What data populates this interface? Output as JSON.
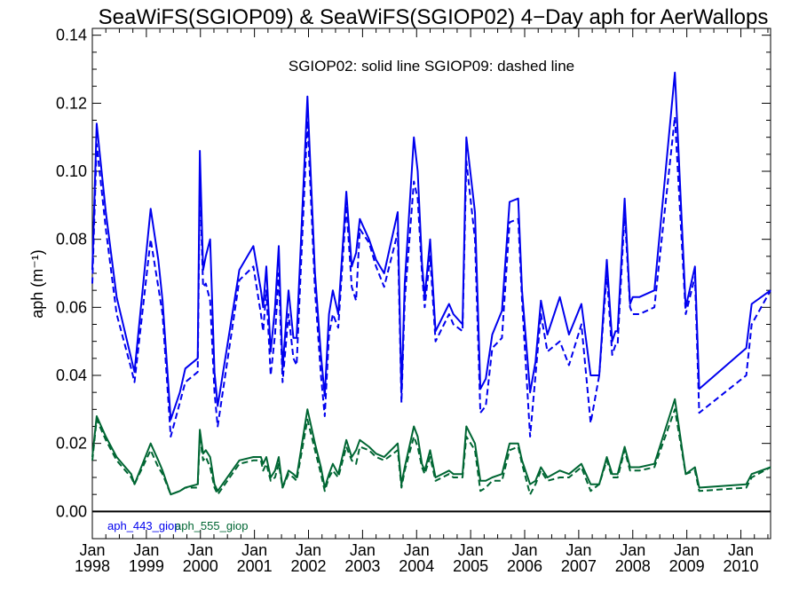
{
  "chart_data": {
    "type": "line",
    "title": "SeaWiFS(SGIOP09) & SeaWiFS(SGIOP02) 4−Day aph for AerWallops",
    "annotation": "SGIOP02: solid line   SGIOP09: dashed line",
    "ylabel": "aph (m⁻¹)",
    "xlabel": "",
    "ylim": [
      -0.008,
      0.142
    ],
    "xlim": [
      1998.0,
      2010.55
    ],
    "yticks": [
      "0.00",
      "0.02",
      "0.04",
      "0.06",
      "0.08",
      "0.10",
      "0.12",
      "0.14"
    ],
    "xticks": [
      {
        "top": "Jan",
        "bottom": "1998"
      },
      {
        "top": "Jan",
        "bottom": "1999"
      },
      {
        "top": "Jan",
        "bottom": "2000"
      },
      {
        "top": "Jan",
        "bottom": "2001"
      },
      {
        "top": "Jan",
        "bottom": "2002"
      },
      {
        "top": "Jan",
        "bottom": "2003"
      },
      {
        "top": "Jan",
        "bottom": "2004"
      },
      {
        "top": "Jan",
        "bottom": "2005"
      },
      {
        "top": "Jan",
        "bottom": "2006"
      },
      {
        "top": "Jan",
        "bottom": "2007"
      },
      {
        "top": "Jan",
        "bottom": "2008"
      },
      {
        "top": "Jan",
        "bottom": "2009"
      },
      {
        "top": "Jan",
        "bottom": "2010"
      }
    ],
    "series": [
      {
        "name": "aph_443_giop",
        "color": "#0000ee",
        "dash": false,
        "x": [
          1998.0,
          1998.08,
          1998.25,
          1998.45,
          1998.72,
          1998.78,
          1999.08,
          1999.22,
          1999.3,
          1999.45,
          1999.62,
          1999.72,
          1999.95,
          1999.99,
          2000.05,
          2000.1,
          2000.18,
          2000.26,
          2000.32,
          2000.72,
          2000.98,
          2001.12,
          2001.16,
          2001.22,
          2001.3,
          2001.38,
          2001.45,
          2001.52,
          2001.63,
          2001.72,
          2001.78,
          2001.98,
          2002.12,
          2002.23,
          2002.3,
          2002.38,
          2002.45,
          2002.55,
          2002.7,
          2002.8,
          2002.88,
          2002.95,
          2003.12,
          2003.25,
          2003.4,
          2003.65,
          2003.72,
          2003.78,
          2003.95,
          2004.02,
          2004.1,
          2004.15,
          2004.25,
          2004.35,
          2004.6,
          2004.68,
          2004.85,
          2004.92,
          2005.08,
          2005.18,
          2005.28,
          2005.4,
          2005.58,
          2005.72,
          2005.88,
          2005.95,
          2006.1,
          2006.2,
          2006.3,
          2006.42,
          2006.65,
          2006.82,
          2007.05,
          2007.22,
          2007.38,
          2007.52,
          2007.62,
          2007.68,
          2007.72,
          2007.85,
          2007.95,
          2008.0,
          2008.12,
          2008.4,
          2008.78,
          2008.98,
          2009.15,
          2009.23,
          2010.1,
          2010.2,
          2010.55
        ],
        "values": [
          0.071,
          0.114,
          0.088,
          0.063,
          0.045,
          0.041,
          0.089,
          0.074,
          0.062,
          0.027,
          0.035,
          0.042,
          0.045,
          0.106,
          0.071,
          0.075,
          0.08,
          0.041,
          0.031,
          0.071,
          0.078,
          0.065,
          0.06,
          0.072,
          0.047,
          0.06,
          0.078,
          0.042,
          0.065,
          0.051,
          0.051,
          0.122,
          0.07,
          0.046,
          0.034,
          0.058,
          0.065,
          0.058,
          0.094,
          0.072,
          0.076,
          0.086,
          0.08,
          0.074,
          0.07,
          0.088,
          0.035,
          0.067,
          0.11,
          0.1,
          0.073,
          0.063,
          0.08,
          0.053,
          0.061,
          0.058,
          0.055,
          0.11,
          0.088,
          0.036,
          0.039,
          0.052,
          0.059,
          0.091,
          0.092,
          0.065,
          0.035,
          0.044,
          0.062,
          0.052,
          0.063,
          0.052,
          0.061,
          0.04,
          0.04,
          0.074,
          0.05,
          0.053,
          0.053,
          0.092,
          0.061,
          0.063,
          0.063,
          0.065,
          0.129,
          0.06,
          0.072,
          0.036,
          0.048,
          0.061,
          0.065
        ]
      },
      {
        "name": "aph_443_giop SGIOP09",
        "color": "#0000ee",
        "dash": true,
        "x": [
          1998.0,
          1998.08,
          1998.25,
          1998.45,
          1998.72,
          1998.78,
          1999.08,
          1999.22,
          1999.3,
          1999.45,
          1999.62,
          1999.72,
          1999.95,
          1999.99,
          2000.05,
          2000.1,
          2000.18,
          2000.26,
          2000.32,
          2000.72,
          2000.98,
          2001.12,
          2001.16,
          2001.22,
          2001.3,
          2001.38,
          2001.45,
          2001.52,
          2001.63,
          2001.72,
          2001.78,
          2001.98,
          2002.12,
          2002.23,
          2002.3,
          2002.38,
          2002.45,
          2002.55,
          2002.7,
          2002.8,
          2002.88,
          2002.95,
          2003.12,
          2003.25,
          2003.4,
          2003.65,
          2003.72,
          2003.78,
          2003.95,
          2004.02,
          2004.1,
          2004.15,
          2004.25,
          2004.35,
          2004.6,
          2004.68,
          2004.85,
          2004.92,
          2005.08,
          2005.18,
          2005.28,
          2005.4,
          2005.58,
          2005.72,
          2005.88,
          2005.95,
          2006.1,
          2006.2,
          2006.3,
          2006.42,
          2006.65,
          2006.82,
          2007.05,
          2007.22,
          2007.38,
          2007.52,
          2007.62,
          2007.68,
          2007.72,
          2007.85,
          2007.95,
          2008.0,
          2008.12,
          2008.4,
          2008.78,
          2008.98,
          2009.15,
          2009.23,
          2010.1,
          2010.2,
          2010.55
        ],
        "values": [
          0.067,
          0.108,
          0.083,
          0.058,
          0.042,
          0.038,
          0.08,
          0.066,
          0.058,
          0.022,
          0.032,
          0.038,
          0.041,
          0.097,
          0.066,
          0.067,
          0.062,
          0.035,
          0.025,
          0.068,
          0.072,
          0.058,
          0.053,
          0.065,
          0.04,
          0.052,
          0.07,
          0.038,
          0.058,
          0.045,
          0.043,
          0.115,
          0.065,
          0.04,
          0.028,
          0.052,
          0.058,
          0.054,
          0.09,
          0.066,
          0.062,
          0.083,
          0.079,
          0.072,
          0.066,
          0.082,
          0.032,
          0.062,
          0.097,
          0.092,
          0.07,
          0.06,
          0.075,
          0.05,
          0.058,
          0.055,
          0.053,
          0.103,
          0.08,
          0.029,
          0.031,
          0.048,
          0.051,
          0.085,
          0.086,
          0.062,
          0.022,
          0.04,
          0.058,
          0.047,
          0.05,
          0.043,
          0.055,
          0.026,
          0.04,
          0.07,
          0.046,
          0.049,
          0.049,
          0.088,
          0.06,
          0.058,
          0.058,
          0.06,
          0.116,
          0.058,
          0.069,
          0.029,
          0.04,
          0.055,
          0.065
        ]
      },
      {
        "name": "aph_555_giop",
        "color": "#006633",
        "dash": false,
        "x": [
          1998.0,
          1998.08,
          1998.25,
          1998.45,
          1998.72,
          1998.78,
          1999.08,
          1999.22,
          1999.3,
          1999.45,
          1999.62,
          1999.72,
          1999.95,
          1999.99,
          2000.05,
          2000.1,
          2000.18,
          2000.26,
          2000.32,
          2000.72,
          2000.98,
          2001.12,
          2001.16,
          2001.22,
          2001.3,
          2001.38,
          2001.45,
          2001.52,
          2001.63,
          2001.72,
          2001.78,
          2001.98,
          2002.12,
          2002.23,
          2002.3,
          2002.38,
          2002.45,
          2002.55,
          2002.7,
          2002.8,
          2002.88,
          2002.95,
          2003.12,
          2003.25,
          2003.4,
          2003.65,
          2003.72,
          2003.78,
          2003.95,
          2004.02,
          2004.1,
          2004.15,
          2004.25,
          2004.35,
          2004.6,
          2004.68,
          2004.85,
          2004.92,
          2005.08,
          2005.18,
          2005.28,
          2005.4,
          2005.58,
          2005.72,
          2005.88,
          2005.95,
          2006.1,
          2006.2,
          2006.3,
          2006.42,
          2006.65,
          2006.82,
          2007.05,
          2007.22,
          2007.38,
          2007.52,
          2007.62,
          2007.68,
          2007.72,
          2007.85,
          2007.95,
          2008.0,
          2008.12,
          2008.4,
          2008.78,
          2008.98,
          2009.15,
          2009.23,
          2010.1,
          2010.2,
          2010.55
        ],
        "values": [
          0.016,
          0.028,
          0.022,
          0.016,
          0.011,
          0.008,
          0.02,
          0.015,
          0.012,
          0.005,
          0.006,
          0.007,
          0.008,
          0.024,
          0.017,
          0.018,
          0.016,
          0.008,
          0.006,
          0.015,
          0.016,
          0.016,
          0.014,
          0.016,
          0.01,
          0.012,
          0.016,
          0.007,
          0.012,
          0.011,
          0.01,
          0.03,
          0.02,
          0.013,
          0.007,
          0.011,
          0.014,
          0.011,
          0.021,
          0.016,
          0.018,
          0.021,
          0.019,
          0.017,
          0.016,
          0.02,
          0.008,
          0.013,
          0.025,
          0.022,
          0.014,
          0.012,
          0.018,
          0.01,
          0.012,
          0.011,
          0.011,
          0.025,
          0.02,
          0.009,
          0.009,
          0.01,
          0.011,
          0.02,
          0.02,
          0.015,
          0.008,
          0.009,
          0.013,
          0.01,
          0.012,
          0.011,
          0.014,
          0.008,
          0.008,
          0.016,
          0.011,
          0.011,
          0.011,
          0.019,
          0.013,
          0.013,
          0.013,
          0.014,
          0.033,
          0.011,
          0.013,
          0.007,
          0.008,
          0.011,
          0.013
        ]
      },
      {
        "name": "aph_555_giop SGIOP09",
        "color": "#006633",
        "dash": true,
        "x": [
          1998.0,
          1998.08,
          1998.25,
          1998.45,
          1998.72,
          1998.78,
          1999.08,
          1999.22,
          1999.3,
          1999.45,
          1999.62,
          1999.72,
          1999.95,
          1999.99,
          2000.05,
          2000.1,
          2000.18,
          2000.26,
          2000.32,
          2000.72,
          2000.98,
          2001.12,
          2001.16,
          2001.22,
          2001.3,
          2001.38,
          2001.45,
          2001.52,
          2001.63,
          2001.72,
          2001.78,
          2001.98,
          2002.12,
          2002.23,
          2002.3,
          2002.38,
          2002.45,
          2002.55,
          2002.7,
          2002.8,
          2002.88,
          2002.95,
          2003.12,
          2003.25,
          2003.4,
          2003.65,
          2003.72,
          2003.78,
          2003.95,
          2004.02,
          2004.1,
          2004.15,
          2004.25,
          2004.35,
          2004.6,
          2004.68,
          2004.85,
          2004.92,
          2005.08,
          2005.18,
          2005.28,
          2005.4,
          2005.58,
          2005.72,
          2005.88,
          2005.95,
          2006.1,
          2006.2,
          2006.3,
          2006.42,
          2006.65,
          2006.82,
          2007.05,
          2007.22,
          2007.38,
          2007.52,
          2007.62,
          2007.68,
          2007.72,
          2007.85,
          2007.95,
          2008.0,
          2008.12,
          2008.4,
          2008.78,
          2008.98,
          2009.15,
          2009.23,
          2010.1,
          2010.2,
          2010.55
        ],
        "values": [
          0.015,
          0.027,
          0.021,
          0.015,
          0.01,
          0.008,
          0.018,
          0.013,
          0.011,
          0.005,
          0.006,
          0.007,
          0.007,
          0.022,
          0.015,
          0.016,
          0.013,
          0.007,
          0.005,
          0.014,
          0.015,
          0.015,
          0.012,
          0.014,
          0.009,
          0.01,
          0.014,
          0.007,
          0.011,
          0.01,
          0.009,
          0.027,
          0.018,
          0.011,
          0.006,
          0.01,
          0.012,
          0.01,
          0.019,
          0.015,
          0.014,
          0.019,
          0.018,
          0.016,
          0.015,
          0.018,
          0.007,
          0.012,
          0.022,
          0.019,
          0.013,
          0.011,
          0.016,
          0.009,
          0.011,
          0.01,
          0.01,
          0.022,
          0.018,
          0.006,
          0.007,
          0.009,
          0.009,
          0.018,
          0.019,
          0.014,
          0.005,
          0.008,
          0.012,
          0.009,
          0.01,
          0.01,
          0.013,
          0.006,
          0.008,
          0.015,
          0.01,
          0.01,
          0.01,
          0.018,
          0.012,
          0.012,
          0.012,
          0.013,
          0.03,
          0.011,
          0.012,
          0.006,
          0.007,
          0.01,
          0.013
        ]
      }
    ],
    "legend": [
      {
        "label": "aph_443_giop",
        "color": "#0000ee"
      },
      {
        "label": "aph_555_giop",
        "color": "#006633"
      }
    ],
    "zero_line": true,
    "grid": false
  }
}
